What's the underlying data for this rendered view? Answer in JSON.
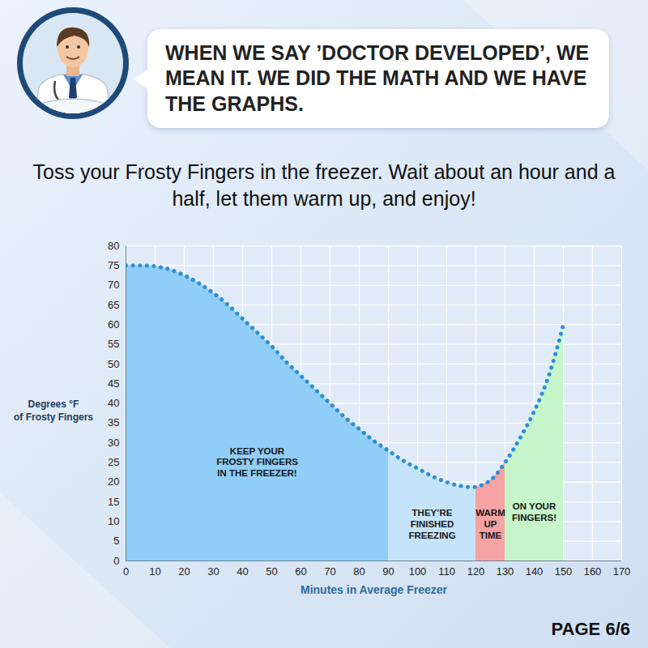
{
  "chart_data": {
    "type": "line",
    "title": "WHEN WE SAY ’DOCTOR DEVELOPED’, WE MEAN IT. WE DID THE MATH AND WE HAVE THE GRAPHS.",
    "subtitle": "Toss your Frosty Fingers in the freezer. Wait about an hour and a half, let them warm up, and enjoy!",
    "page": "PAGE 6/6",
    "xlabel": "Minutes in Average Freezer",
    "ylabel": "Degrees °F\nof Frosty Fingers",
    "x": [
      0,
      5,
      10,
      15,
      20,
      25,
      30,
      35,
      40,
      45,
      50,
      55,
      60,
      65,
      70,
      75,
      80,
      85,
      90,
      95,
      100,
      105,
      110,
      115,
      120,
      125,
      130,
      135,
      140,
      145,
      150
    ],
    "values": [
      75,
      75,
      74.8,
      74,
      72.5,
      70.5,
      68,
      65,
      61.5,
      58,
      54.5,
      50.5,
      47,
      43.5,
      40,
      36.5,
      33.5,
      30.5,
      28,
      25.5,
      23.5,
      21.5,
      20,
      19,
      18.8,
      20.5,
      25,
      31,
      38,
      47,
      60
    ],
    "color": "#2b8fd0",
    "line_style": "dotted",
    "xlim": [
      0,
      170
    ],
    "xticks": [
      0,
      10,
      20,
      30,
      40,
      50,
      60,
      70,
      80,
      90,
      100,
      110,
      120,
      130,
      140,
      150,
      160,
      170
    ],
    "ylim": [
      0,
      80
    ],
    "yticks": [
      0,
      5,
      10,
      15,
      20,
      25,
      30,
      35,
      40,
      45,
      50,
      55,
      60,
      65,
      70,
      75,
      80
    ],
    "grid": true,
    "bands": [
      {
        "label": "KEEP YOUR\nFROSTY FINGERS\nIN THE FREEZER!",
        "from": 0,
        "to": 90,
        "color": "#90cdf7"
      },
      {
        "label": "THEY’RE\nFINISHED\nFREEZING",
        "from": 90,
        "to": 120,
        "color": "#c6e4f9"
      },
      {
        "label": "WARM\nUP\nTIME",
        "from": 120,
        "to": 130,
        "color": "#f6a3a3"
      },
      {
        "label": "ON YOUR\nFINGERS!",
        "from": 130,
        "to": 150,
        "color": "#c6f5ca"
      }
    ]
  }
}
